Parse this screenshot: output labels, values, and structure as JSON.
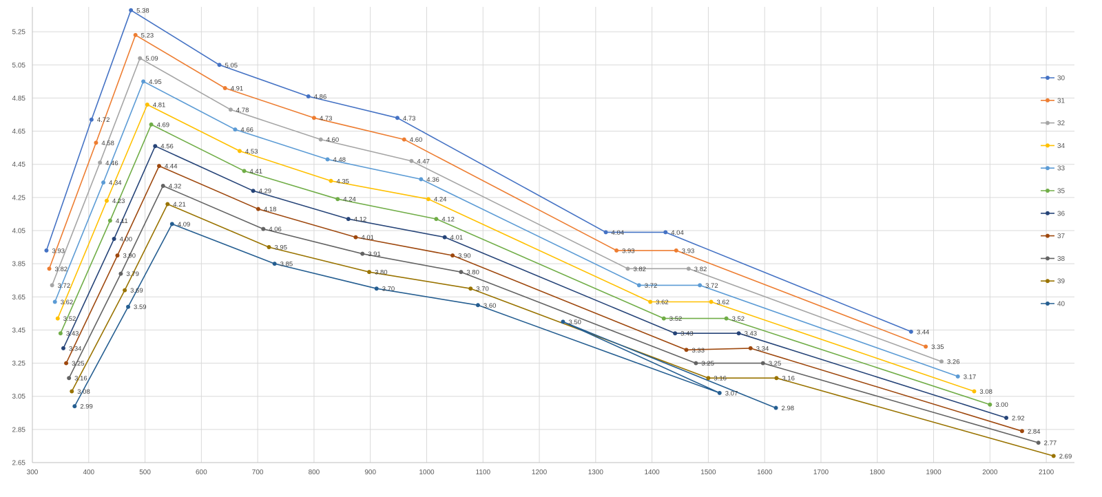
{
  "chart_data": {
    "type": "scatter",
    "title": "",
    "xlabel": "",
    "ylabel": "",
    "xlim": [
      300,
      2150
    ],
    "ylim": [
      2.65,
      5.4
    ],
    "xticks": [
      300,
      400,
      500,
      600,
      700,
      800,
      900,
      1000,
      1100,
      1200,
      1300,
      1400,
      1500,
      1600,
      1700,
      1800,
      1900,
      2000,
      2100
    ],
    "yticks": [
      2.65,
      2.85,
      3.05,
      3.25,
      3.45,
      3.65,
      3.85,
      4.05,
      4.25,
      4.45,
      4.65,
      4.85,
      5.05,
      5.25
    ],
    "grid": true,
    "legend": "right",
    "series": [
      {
        "name": "30",
        "color": "#4472c4",
        "x": [
          325,
          405,
          475,
          632,
          790,
          948,
          1318,
          1424,
          1860
        ],
        "y": [
          3.93,
          4.72,
          5.38,
          5.05,
          4.86,
          4.73,
          4.04,
          4.04,
          3.44
        ],
        "labels": [
          "3.93",
          "4.72",
          "5.38",
          "5.05",
          "4.86",
          "4.73",
          "4.04",
          "4.04",
          "3.44"
        ]
      },
      {
        "name": "31",
        "color": "#ed7d31",
        "x": [
          330,
          413,
          483,
          642,
          800,
          960,
          1337,
          1443,
          1886
        ],
        "y": [
          3.82,
          4.58,
          5.23,
          4.91,
          4.73,
          4.6,
          3.93,
          3.93,
          3.35
        ],
        "labels": [
          "3.82",
          "4.58",
          "5.23",
          "4.91",
          "4.73",
          "4.60",
          "3.93",
          "3.93",
          "3.35"
        ]
      },
      {
        "name": "32",
        "color": "#a5a5a5",
        "x": [
          335,
          420,
          491,
          652,
          812,
          973,
          1357,
          1465,
          1914
        ],
        "y": [
          3.72,
          4.46,
          5.09,
          4.78,
          4.6,
          4.47,
          3.82,
          3.82,
          3.26
        ],
        "labels": [
          "3.72",
          "4.46",
          "5.09",
          "4.78",
          "4.60",
          "4.47",
          "3.82",
          "3.82",
          "3.26"
        ]
      },
      {
        "name": "34",
        "color": "#ffc000",
        "x": [
          345,
          432,
          504,
          668,
          830,
          1003,
          1397,
          1505,
          1972
        ],
        "y": [
          3.52,
          4.23,
          4.81,
          4.53,
          4.35,
          4.24,
          3.62,
          3.62,
          3.08
        ],
        "labels": [
          "3.52",
          "4.23",
          "4.81",
          "4.53",
          "4.35",
          "4.24",
          "3.62",
          "3.62",
          "3.08"
        ]
      },
      {
        "name": "33",
        "color": "#5b9bd5",
        "x": [
          340,
          426,
          497,
          660,
          824,
          990,
          1377,
          1485,
          1943
        ],
        "y": [
          3.62,
          4.34,
          4.95,
          4.66,
          4.48,
          4.36,
          3.72,
          3.72,
          3.17
        ],
        "labels": [
          "3.62",
          "4.34",
          "4.95",
          "4.66",
          "4.48",
          "4.36",
          "3.72",
          "3.72",
          "3.17"
        ]
      },
      {
        "name": "35",
        "color": "#70ad47",
        "x": [
          350,
          438,
          511,
          676,
          842,
          1017,
          1421,
          1532,
          2000
        ],
        "y": [
          3.43,
          4.11,
          4.69,
          4.41,
          4.24,
          4.12,
          3.52,
          3.52,
          3.0
        ],
        "labels": [
          "3.43",
          "4.11",
          "4.69",
          "4.41",
          "4.24",
          "4.12",
          "3.52",
          "3.52",
          "3.00"
        ]
      },
      {
        "name": "36",
        "color": "#264478",
        "x": [
          355,
          445,
          518,
          692,
          861,
          1032,
          1441,
          1554,
          2029
        ],
        "y": [
          3.34,
          4.0,
          4.56,
          4.29,
          4.12,
          4.01,
          3.43,
          3.43,
          2.92
        ],
        "labels": [
          "3.34",
          "4.00",
          "4.56",
          "4.29",
          "4.12",
          "4.01",
          "3.43",
          "3.43",
          "2.92"
        ]
      },
      {
        "name": "37",
        "color": "#9e480e",
        "x": [
          360,
          451,
          525,
          701,
          874,
          1046,
          1461,
          1575,
          2057
        ],
        "y": [
          3.25,
          3.9,
          4.44,
          4.18,
          4.01,
          3.9,
          3.33,
          3.34,
          2.84
        ],
        "labels": [
          "3.25",
          "3.90",
          "4.44",
          "4.18",
          "4.01",
          "3.90",
          "3.33",
          "3.34",
          "2.84"
        ]
      },
      {
        "name": "38",
        "color": "#636363",
        "x": [
          365,
          457,
          532,
          710,
          886,
          1061,
          1478,
          1597,
          2086
        ],
        "y": [
          3.16,
          3.79,
          4.32,
          4.06,
          3.91,
          3.8,
          3.25,
          3.25,
          2.77
        ],
        "labels": [
          "3.16",
          "3.79",
          "4.32",
          "4.06",
          "3.91",
          "3.80",
          "3.25",
          "3.25",
          "2.77"
        ]
      },
      {
        "name": "39",
        "color": "#997300",
        "x": [
          370,
          464,
          540,
          720,
          898,
          1078,
          1500,
          1621,
          2113
        ],
        "y": [
          3.08,
          3.69,
          4.21,
          3.95,
          3.8,
          3.7,
          3.16,
          3.16,
          2.69
        ],
        "labels": [
          "3.08",
          "3.69",
          "4.21",
          "3.95",
          "3.80",
          "3.70",
          "3.16",
          "3.16",
          "2.69"
        ]
      },
      {
        "name": "40",
        "color": "#255e91",
        "x": [
          375,
          470,
          548,
          730,
          911,
          1091,
          1520,
          1242,
          1620
        ],
        "y": [
          2.99,
          3.59,
          4.09,
          3.85,
          3.7,
          3.6,
          3.07,
          3.5,
          2.98
        ],
        "labels": [
          "2.99",
          "3.59",
          "4.09",
          "3.85",
          "3.70",
          "3.60",
          "3.07",
          "3.50",
          "2.98"
        ]
      }
    ]
  }
}
